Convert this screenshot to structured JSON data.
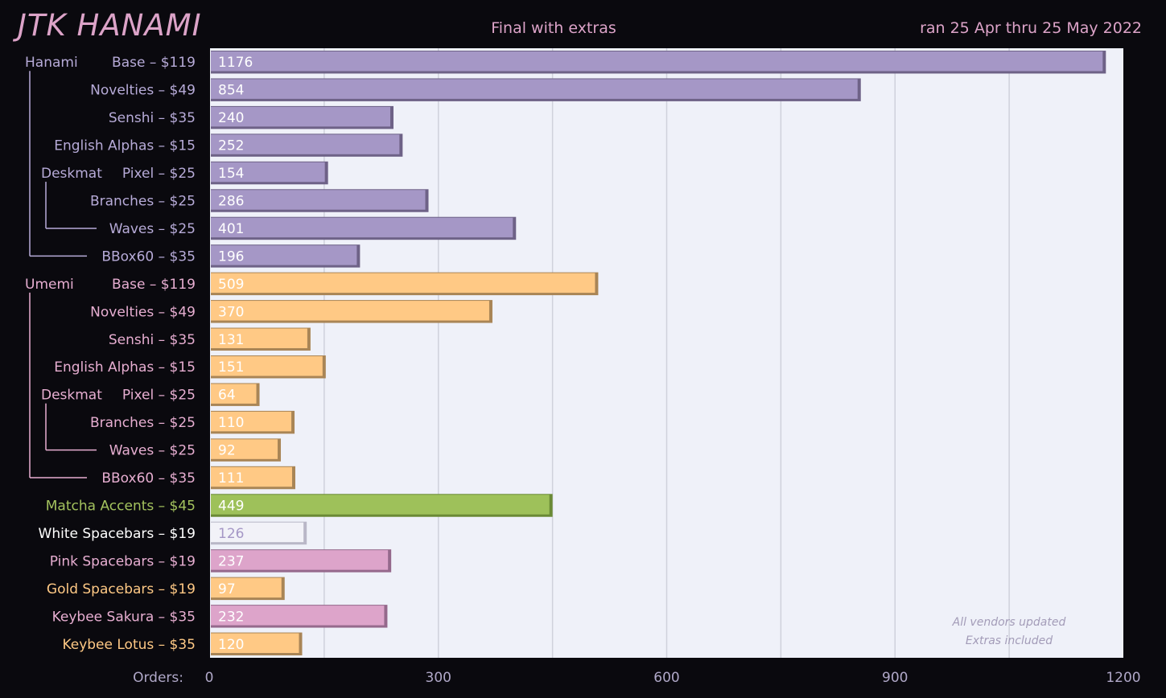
{
  "header": {
    "title": "JTK HANAMI",
    "subtitle": "Final with extras",
    "date_range": "ran 25 Apr thru 25 May 2022"
  },
  "colors": {
    "hanami": "#a597c6",
    "hanami_edge": "#6e6287",
    "umemi": "#ffc985",
    "umemi_edge": "#a98556",
    "matcha": "#9ec15a",
    "matcha_edge": "#6a8a35",
    "white": "#f2f2f8",
    "white_edge": "#b9b7c7",
    "pink": "#dda4ca",
    "pink_edge": "#95698c",
    "plot_bg": "#eff1f9",
    "grid": "#cfd1dc",
    "label_hanami": "#b7abd8",
    "label_umemi": "#e7aed1",
    "label_matcha": "#a4c35e",
    "label_white": "#ffffff",
    "label_gold": "#ffc985"
  },
  "chart_data": {
    "type": "bar",
    "orientation": "horizontal",
    "title": "JTK HANAMI",
    "subtitle": "Final with extras",
    "xlabel": "Orders:",
    "xlim": [
      0,
      1200
    ],
    "xticks": [
      0,
      300,
      600,
      900,
      1200
    ],
    "grid": true,
    "annotation": [
      "All vendors updated",
      "Extras included"
    ],
    "bars": [
      {
        "group": "Hanami",
        "label": "Base – $119",
        "value": 1176,
        "color": "hanami",
        "label_color": "label_hanami",
        "value_color": "#ffffff"
      },
      {
        "group": "",
        "label": "Novelties – $49",
        "value": 854,
        "color": "hanami",
        "label_color": "label_hanami",
        "value_color": "#ffffff"
      },
      {
        "group": "",
        "label": "Senshi – $35",
        "value": 240,
        "color": "hanami",
        "label_color": "label_hanami",
        "value_color": "#ffffff"
      },
      {
        "group": "",
        "label": "English Alphas – $15",
        "value": 252,
        "color": "hanami",
        "label_color": "label_hanami",
        "value_color": "#ffffff"
      },
      {
        "group": "Deskmat",
        "label": "Pixel – $25",
        "value": 154,
        "color": "hanami",
        "label_color": "label_hanami",
        "value_color": "#ffffff"
      },
      {
        "group": "",
        "label": "Branches – $25",
        "value": 286,
        "color": "hanami",
        "label_color": "label_hanami",
        "value_color": "#ffffff"
      },
      {
        "group": "",
        "label": "Waves – $25",
        "value": 401,
        "color": "hanami",
        "label_color": "label_hanami",
        "value_color": "#ffffff"
      },
      {
        "group": "",
        "label": "BBox60 – $35",
        "value": 196,
        "color": "hanami",
        "label_color": "label_hanami",
        "value_color": "#ffffff"
      },
      {
        "group": "Umemi",
        "label": "Base – $119",
        "value": 509,
        "color": "umemi",
        "label_color": "label_umemi",
        "value_color": "#ffffff"
      },
      {
        "group": "",
        "label": "Novelties – $49",
        "value": 370,
        "color": "umemi",
        "label_color": "label_umemi",
        "value_color": "#ffffff"
      },
      {
        "group": "",
        "label": "Senshi – $35",
        "value": 131,
        "color": "umemi",
        "label_color": "label_umemi",
        "value_color": "#ffffff"
      },
      {
        "group": "",
        "label": "English Alphas – $15",
        "value": 151,
        "color": "umemi",
        "label_color": "label_umemi",
        "value_color": "#ffffff"
      },
      {
        "group": "Deskmat",
        "label": "Pixel – $25",
        "value": 64,
        "color": "umemi",
        "label_color": "label_umemi",
        "value_color": "#ffffff"
      },
      {
        "group": "",
        "label": "Branches – $25",
        "value": 110,
        "color": "umemi",
        "label_color": "label_umemi",
        "value_color": "#ffffff"
      },
      {
        "group": "",
        "label": "Waves – $25",
        "value": 92,
        "color": "umemi",
        "label_color": "label_umemi",
        "value_color": "#ffffff"
      },
      {
        "group": "",
        "label": "BBox60 – $35",
        "value": 111,
        "color": "umemi",
        "label_color": "label_umemi",
        "value_color": "#ffffff"
      },
      {
        "group": "",
        "label": "Matcha Accents – $45",
        "value": 449,
        "color": "matcha",
        "label_color": "label_matcha",
        "value_color": "#ffffff"
      },
      {
        "group": "",
        "label": "White Spacebars – $19",
        "value": 126,
        "color": "white",
        "label_color": "label_white",
        "value_color": "#a597c6"
      },
      {
        "group": "",
        "label": "Pink Spacebars – $19",
        "value": 237,
        "color": "pink",
        "label_color": "label_umemi",
        "value_color": "#ffffff"
      },
      {
        "group": "",
        "label": "Gold Spacebars – $19",
        "value": 97,
        "color": "umemi",
        "label_color": "label_gold",
        "value_color": "#ffffff"
      },
      {
        "group": "",
        "label": "Keybee Sakura – $35",
        "value": 232,
        "color": "pink",
        "label_color": "label_umemi",
        "value_color": "#ffffff"
      },
      {
        "group": "",
        "label": "Keybee Lotus – $35",
        "value": 120,
        "color": "umemi",
        "label_color": "label_gold",
        "value_color": "#ffffff"
      }
    ]
  }
}
